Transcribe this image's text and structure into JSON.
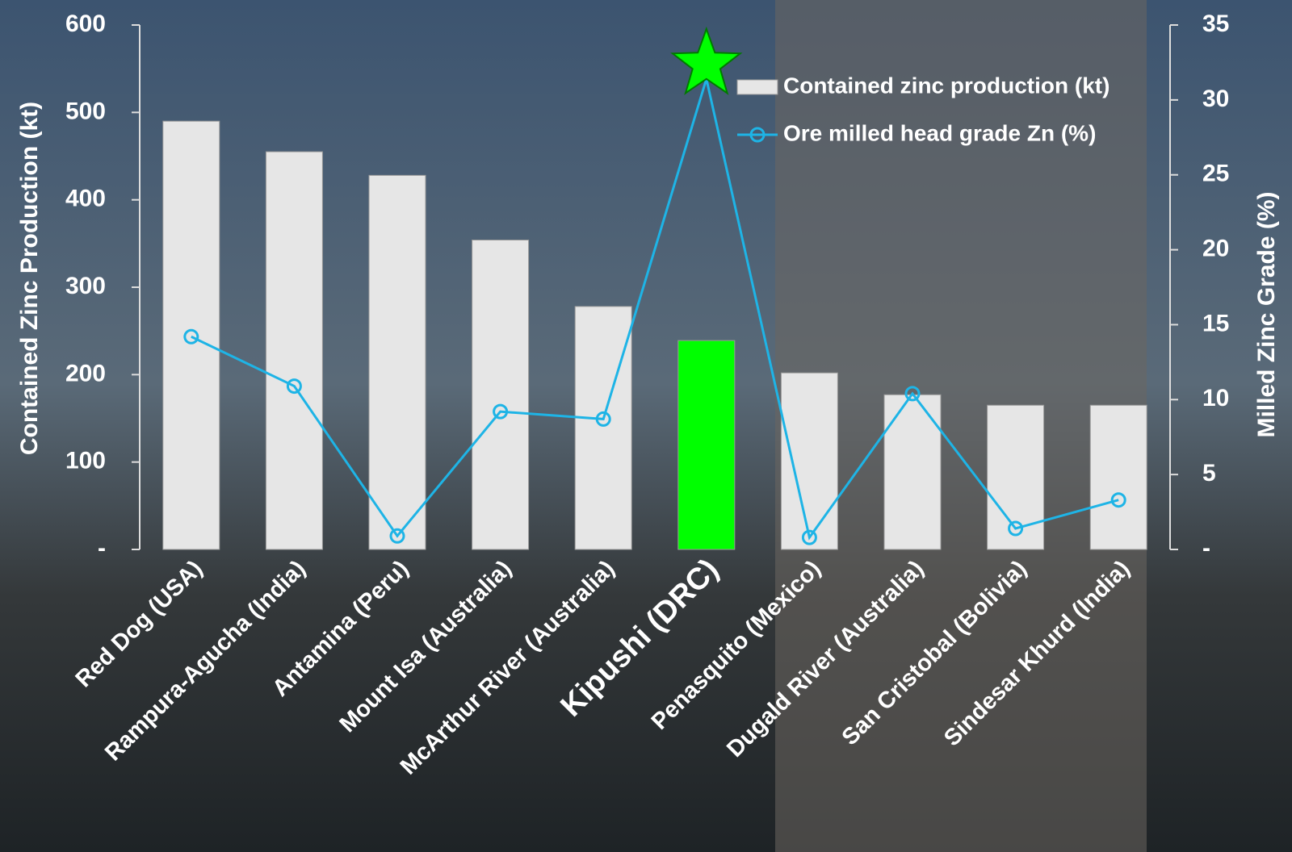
{
  "chart_data": {
    "type": "bar-line",
    "y_label": "Contained Zinc Production (kt)",
    "y2_label": "Milled Zinc Grade (%)",
    "categories": [
      "Red Dog (USA)",
      "Rampura-Agucha (India)",
      "Antamina (Peru)",
      "Mount Isa (Australia)",
      "McArthur River (Australia)",
      "Kipushi (DRC)",
      "Penasquito (Mexico)",
      "Dugald River (Australia)",
      "San Cristobal (Bolivia)",
      "Sindesar Khurd (India)"
    ],
    "category_colors": [
      "#ffffff",
      "#ffffff",
      "#ffffff",
      "#ffffff",
      "#ffffff",
      "#00ff00",
      "#ffffff",
      "#ffffff",
      "#ffffff",
      "#ffffff"
    ],
    "series": [
      {
        "name": "Contained zinc production (kt)",
        "type": "bar",
        "color": "#e6e6e6",
        "colors": [
          "#e6e6e6",
          "#e6e6e6",
          "#e6e6e6",
          "#e6e6e6",
          "#e6e6e6",
          "#00ff00",
          "#e6e6e6",
          "#e6e6e6",
          "#e6e6e6",
          "#e6e6e6"
        ],
        "values": [
          490,
          455,
          428,
          354,
          278,
          239,
          202,
          177,
          165,
          165
        ]
      },
      {
        "name": "Ore milled head grade Zn (%)",
        "type": "line",
        "axis": "y2",
        "color": "#1eb4e6",
        "markers": [
          "circle",
          "circle",
          "circle",
          "circle",
          "circle",
          "star",
          "circle",
          "circle",
          "circle",
          "circle"
        ],
        "marker_colors": [
          "#1eb4e6",
          "#1eb4e6",
          "#1eb4e6",
          "#1eb4e6",
          "#1eb4e6",
          "#00ff00",
          "#1eb4e6",
          "#1eb4e6",
          "#1eb4e6",
          "#1eb4e6"
        ],
        "values": [
          14.2,
          10.9,
          0.9,
          9.2,
          8.7,
          31.4,
          0.8,
          10.4,
          1.4,
          3.3
        ]
      }
    ],
    "ylim": [
      0,
      600
    ],
    "yticks": [
      {
        "value": 0,
        "label": "-"
      },
      100,
      200,
      300,
      400,
      500,
      600
    ],
    "y2lim": [
      0,
      35
    ],
    "y2ticks": [
      {
        "value": 0,
        "label": "-"
      },
      5,
      10,
      15,
      20,
      25,
      30,
      35
    ],
    "legend": "upper right"
  }
}
